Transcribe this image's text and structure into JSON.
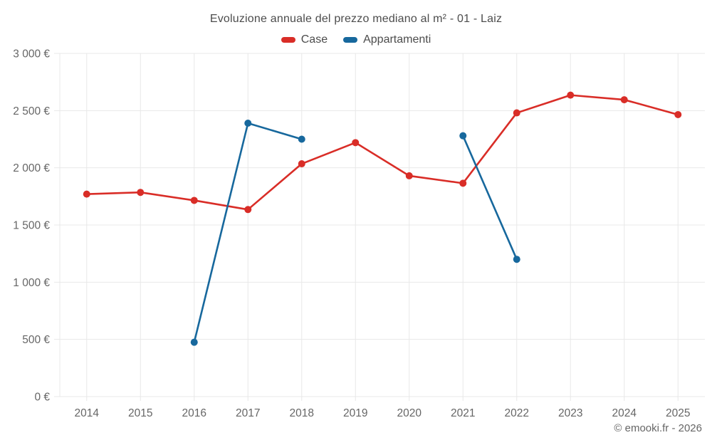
{
  "title": "Evoluzione annuale del prezzo mediano al m² - 01 - Laiz",
  "footer": {
    "text": "© emooki.fr - 2026"
  },
  "colors": {
    "background": "#ffffff",
    "grid": "#e8e8e8",
    "axis_text": "#666666",
    "title_text": "#4c4c4c",
    "case_red": "#d92d27",
    "appartamenti_blue": "#17689d"
  },
  "chart_data": {
    "type": "line",
    "title": "Evoluzione annuale del prezzo mediano al m² - 01 - Laiz",
    "categories": [
      "2014",
      "2015",
      "2016",
      "2017",
      "2018",
      "2019",
      "2020",
      "2021",
      "2022",
      "2023",
      "2024",
      "2025"
    ],
    "series": [
      {
        "name": "Case",
        "color": "#d92d27",
        "values": [
          1770,
          1785,
          1715,
          1635,
          2035,
          2220,
          1930,
          1865,
          2480,
          2635,
          2595,
          2465
        ]
      },
      {
        "name": "Appartamenti",
        "color": "#17689d",
        "values": [
          null,
          null,
          475,
          2390,
          2250,
          null,
          null,
          2280,
          1200,
          null,
          null,
          null
        ]
      }
    ],
    "xlabel": "",
    "ylabel": "",
    "ylim": [
      0,
      3000
    ],
    "y_ticks": [
      0,
      500,
      1000,
      1500,
      2000,
      2500,
      3000
    ],
    "y_tick_labels": [
      "0 €",
      "500 €",
      "1 000 €",
      "1 500 €",
      "2 000 €",
      "2 500 €",
      "3 000 €"
    ],
    "grid": true,
    "legend_position": "top"
  }
}
